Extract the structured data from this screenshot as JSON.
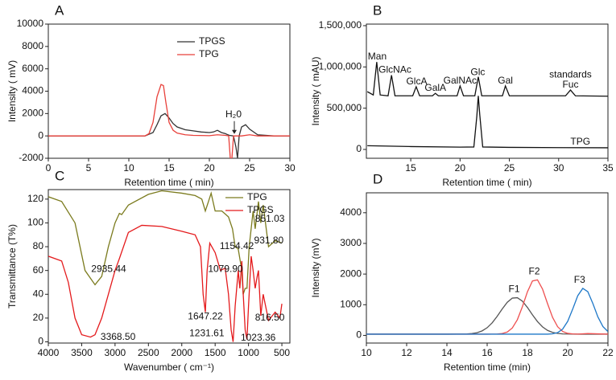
{
  "chart_data": [
    {
      "type": "line",
      "label": "A",
      "xlabel": "Retention time ( min)",
      "ylabel": "Intensity ( mV)",
      "xlim": [
        0,
        30
      ],
      "xticks": [
        0,
        5,
        10,
        15,
        20,
        25,
        30
      ],
      "ylim": [
        -2000,
        10000
      ],
      "yticks": [
        -2000,
        0,
        2000,
        4000,
        6000,
        8000,
        10000
      ],
      "legend": "upper center",
      "series": [
        {
          "name": "TPGS",
          "color": "#333333",
          "x": [
            0,
            5,
            10,
            12,
            13,
            13.5,
            14,
            14.5,
            15,
            15.5,
            16,
            17,
            18,
            19,
            20,
            20.5,
            21,
            21.5,
            22,
            22.3,
            22.5,
            23,
            23.3,
            23.5,
            23.7,
            24,
            24.5,
            25,
            26,
            28,
            30
          ],
          "values": [
            0,
            0,
            0,
            0,
            300,
            1000,
            1800,
            2000,
            1600,
            1100,
            800,
            550,
            450,
            350,
            300,
            350,
            500,
            300,
            200,
            100,
            50,
            0,
            -1000,
            -2000,
            0,
            800,
            1000,
            600,
            100,
            0,
            0
          ]
        },
        {
          "name": "TPG",
          "color": "#e8403a",
          "x": [
            0,
            5,
            10,
            12,
            12.5,
            13,
            13.5,
            14,
            14.3,
            14.6,
            15,
            15.5,
            16,
            17,
            18,
            20,
            21,
            22,
            22.4,
            22.6,
            22.8,
            23,
            23.3,
            24,
            25,
            26,
            30
          ],
          "values": [
            0,
            0,
            0,
            0,
            200,
            1200,
            3500,
            4600,
            4500,
            3000,
            1200,
            500,
            250,
            100,
            50,
            20,
            100,
            50,
            0,
            -2000,
            -2000,
            0,
            0,
            0,
            100,
            0,
            0
          ]
        }
      ],
      "annotations": [
        {
          "text": "H₂0",
          "x": 23,
          "y": 1900,
          "arrow": true
        }
      ]
    },
    {
      "type": "line",
      "label": "B",
      "xlabel": "Retention time  ( min)",
      "ylabel": "Intensity  ( mAU)",
      "xlim": [
        10.5,
        35
      ],
      "xticks": [
        15,
        20,
        25,
        30,
        35
      ],
      "ylim": [
        -107000,
        1519000
      ],
      "yticks": [
        0,
        {
          "value": 500000,
          "label": "500,000"
        },
        {
          "value": 1000000,
          "label": "1,000,000"
        },
        {
          "value": 1500000,
          "label": "1,500,000"
        }
      ],
      "legend": "none",
      "series": [
        {
          "name": "standards",
          "color": "#111111",
          "x": [
            10.6,
            11.2,
            11.55,
            11.9,
            12.7,
            13.05,
            13.4,
            15.2,
            15.55,
            15.9,
            17.2,
            17.5,
            17.8,
            19.7,
            20.0,
            20.35,
            21.5,
            21.85,
            22.2,
            24.3,
            24.6,
            25.0,
            30.7,
            31.2,
            31.7,
            35
          ],
          "values": [
            700000,
            660000,
            1060000,
            660000,
            650000,
            900000,
            650000,
            650000,
            760000,
            650000,
            650000,
            680000,
            650000,
            650000,
            770000,
            650000,
            650000,
            880000,
            650000,
            650000,
            770000,
            650000,
            650000,
            720000,
            650000,
            645000
          ]
        },
        {
          "name": "TPG",
          "color": "#111111",
          "x": [
            10.6,
            15,
            20,
            21.4,
            21.7,
            21.85,
            22.0,
            22.3,
            25,
            30,
            35
          ],
          "values": [
            45000,
            35000,
            28000,
            30000,
            400000,
            650000,
            420000,
            30000,
            25000,
            22000,
            20000
          ]
        }
      ],
      "annotations": [
        {
          "text": "Man",
          "x": 11.6,
          "y": 1120000
        },
        {
          "text": "GlcNAc",
          "x": 13.4,
          "y": 960000
        },
        {
          "text": "GlcA",
          "x": 15.6,
          "y": 820000
        },
        {
          "text": "GalA",
          "x": 17.5,
          "y": 740000
        },
        {
          "text": "GalNAc",
          "x": 20,
          "y": 830000
        },
        {
          "text": "Glc",
          "x": 21.8,
          "y": 930000
        },
        {
          "text": "Gal",
          "x": 24.6,
          "y": 830000
        },
        {
          "text": "standards",
          "x": 31.2,
          "y": 900000
        },
        {
          "text": "Fuc",
          "x": 31.2,
          "y": 780000
        },
        {
          "text": "TPG",
          "x": 32.2,
          "y": 90000
        }
      ]
    },
    {
      "type": "line",
      "label": "C",
      "xlabel": "Wavenumber ( cm⁻¹)",
      "ylabel": "Transmittance (T%)",
      "xlim": [
        4000,
        380
      ],
      "xticks": [
        4000,
        3500,
        3000,
        2500,
        2000,
        1500,
        1000,
        500
      ],
      "ylim": [
        -1,
        128
      ],
      "yticks": [
        0,
        20,
        40,
        60,
        80,
        100,
        120
      ],
      "legend": "upper right",
      "series": [
        {
          "name": "TPG",
          "color": "#7b7b1e",
          "x": [
            4000,
            3800,
            3600,
            3450,
            3300,
            3200,
            3100,
            3000,
            2935,
            2900,
            2800,
            2500,
            2300,
            2000,
            1800,
            1700,
            1647,
            1600,
            1560,
            1500,
            1400,
            1300,
            1240,
            1200,
            1154,
            1100,
            1080,
            1050,
            1023,
            990,
            931,
            900,
            851,
            816,
            780,
            700,
            600,
            500
          ],
          "values": [
            122,
            118,
            100,
            60,
            48,
            55,
            80,
            100,
            108,
            107,
            115,
            124,
            127,
            125,
            123,
            120,
            110,
            118,
            125,
            110,
            110,
            105,
            95,
            80,
            78,
            60,
            40,
            45,
            45,
            80,
            110,
            95,
            118,
            100,
            115,
            80,
            85,
            83
          ]
        },
        {
          "name": "TPGS",
          "color": "#e41a1c",
          "x": [
            4000,
            3800,
            3700,
            3600,
            3500,
            3368,
            3300,
            3200,
            3100,
            3000,
            2935,
            2800,
            2600,
            2300,
            2000,
            1800,
            1720,
            1680,
            1647,
            1620,
            1580,
            1500,
            1420,
            1350,
            1300,
            1260,
            1231,
            1200,
            1154,
            1130,
            1100,
            1079,
            1050,
            1023,
            1000,
            960,
            931,
            900,
            870,
            851,
            816,
            780,
            700,
            600,
            530,
            500
          ],
          "values": [
            72,
            68,
            50,
            20,
            6,
            4,
            6,
            20,
            40,
            60,
            70,
            92,
            98,
            97,
            93,
            90,
            80,
            40,
            25,
            60,
            83,
            75,
            60,
            62,
            40,
            10,
            0,
            30,
            60,
            45,
            68,
            40,
            10,
            2,
            30,
            72,
            60,
            45,
            55,
            60,
            22,
            40,
            18,
            25,
            20,
            32
          ]
        }
      ],
      "annotations": [
        {
          "text": "2935.44",
          "x": 3095,
          "y": 61
        },
        {
          "text": "3368.50",
          "x": 2955,
          "y": 4
        },
        {
          "text": "1647.22",
          "x": 1647,
          "y": 21
        },
        {
          "text": "1231.61",
          "x": 1625,
          "y": 7
        },
        {
          "text": "1079.90",
          "x": 1345,
          "y": 61
        },
        {
          "text": "1154.42",
          "x": 1175,
          "y": 80
        },
        {
          "text": "931.80",
          "x": 695,
          "y": 85
        },
        {
          "text": "851.03",
          "x": 680,
          "y": 103
        },
        {
          "text": "1023.36",
          "x": 855,
          "y": 3
        },
        {
          "text": "816.50",
          "x": 680,
          "y": 20
        }
      ]
    },
    {
      "type": "line",
      "label": "D",
      "xlabel": "Retention time (min)",
      "ylabel": "Intensity  (mV)",
      "xlim": [
        10,
        22
      ],
      "xticks": [
        10,
        12,
        14,
        16,
        18,
        20,
        22
      ],
      "ylim": [
        -250,
        4650
      ],
      "yticks": [
        0,
        1000,
        2000,
        3000,
        4000
      ],
      "legend": "on-curve",
      "series": [
        {
          "name": "F1",
          "color": "#555555",
          "x": [
            10,
            12,
            14,
            15,
            15.25,
            15.5,
            15.75,
            16,
            16.25,
            16.5,
            16.75,
            17,
            17.25,
            17.5,
            17.75,
            18,
            18.25,
            18.5,
            18.75,
            19,
            19.25,
            19.5,
            19.75,
            20,
            20.5,
            21,
            21.5,
            22
          ],
          "values": [
            40,
            40,
            40,
            47,
            60,
            88,
            147,
            250,
            410,
            624,
            864,
            1080,
            1216,
            1229,
            1116,
            911,
            671,
            449,
            278,
            163,
            98,
            64,
            49,
            45,
            40,
            40,
            40,
            40
          ]
        },
        {
          "name": "F2",
          "color": "#ee5050",
          "x": [
            10,
            12,
            14,
            15,
            16,
            16.25,
            16.5,
            16.75,
            17,
            17.25,
            17.5,
            17.75,
            18,
            18.25,
            18.5,
            18.75,
            19,
            19.25,
            19.5,
            19.75,
            20,
            20.25,
            20.5,
            21,
            21.5,
            22
          ],
          "values": [
            40,
            40,
            40,
            40,
            40,
            41,
            45,
            60,
            110,
            242,
            512,
            936,
            1422,
            1775,
            1811,
            1512,
            1034,
            586,
            283,
            128,
            66,
            48,
            42,
            60,
            50,
            40
          ]
        },
        {
          "name": "F3",
          "color": "#1f78c8",
          "x": [
            10,
            12,
            14,
            16,
            18,
            19,
            19.25,
            19.5,
            19.75,
            20,
            20.25,
            20.5,
            20.75,
            21,
            21.25,
            21.5,
            21.75,
            22
          ],
          "values": [
            40,
            40,
            40,
            40,
            40,
            40,
            52,
            91,
            205,
            457,
            859,
            1293,
            1533,
            1425,
            1041,
            603,
            288,
            124
          ]
        }
      ]
    }
  ]
}
